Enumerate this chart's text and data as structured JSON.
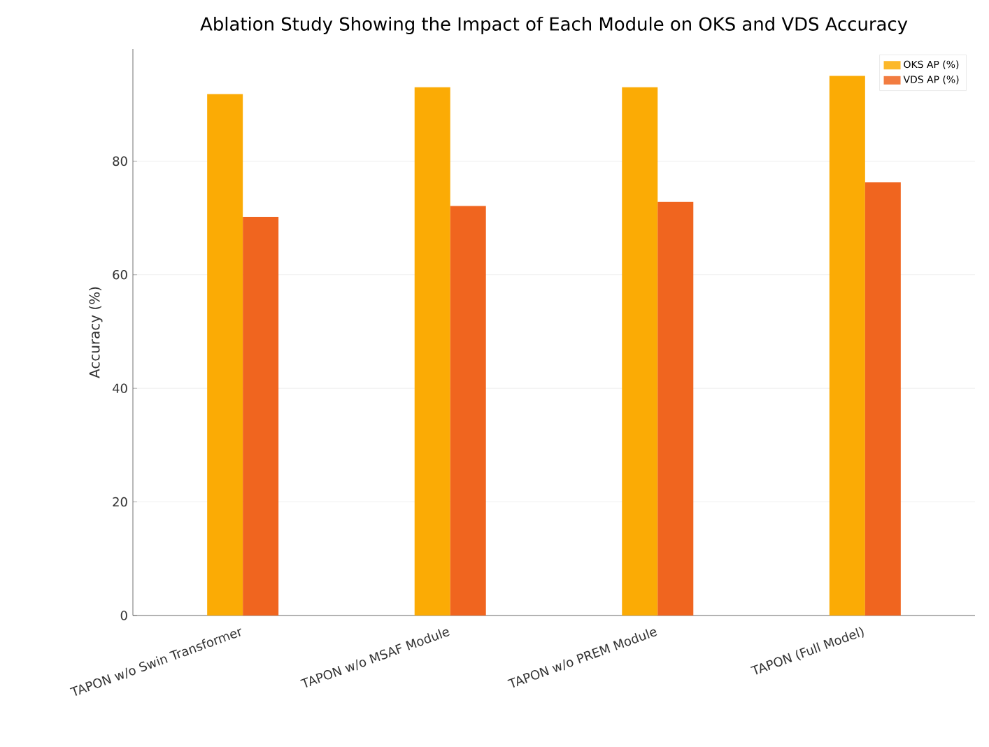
{
  "chart_data": {
    "type": "bar",
    "title": "Ablation Study Showing the Impact of Each Module on OKS and VDS Accuracy",
    "ylabel": "Accuracy (%)",
    "categories": [
      "TAPON w/o Swin Transformer",
      "TAPON w/o MSAF Module",
      "TAPON w/o PREM Module",
      "TAPON (Full Model)"
    ],
    "series": [
      {
        "name": "OKS AP (%)",
        "color": "#fbab05",
        "values": [
          91.8,
          93.0,
          93.0,
          95.0
        ]
      },
      {
        "name": "VDS AP (%)",
        "color": "#f0651f",
        "values": [
          70.2,
          72.1,
          72.8,
          76.3
        ]
      }
    ],
    "ylim": [
      0,
      99.75
    ],
    "yticks": [
      0,
      20,
      40,
      60,
      80
    ],
    "grid": "y",
    "legend": "top right"
  }
}
